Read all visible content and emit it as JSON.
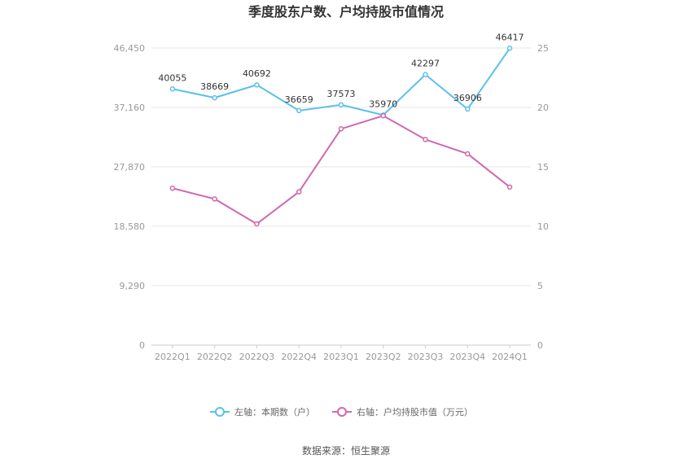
{
  "chart_data": {
    "type": "line",
    "title": "季度股东户数、户均持股市值情况",
    "categories": [
      "2022Q1",
      "2022Q2",
      "2022Q3",
      "2022Q4",
      "2023Q1",
      "2023Q2",
      "2023Q3",
      "2023Q4",
      "2024Q1"
    ],
    "left_axis": {
      "ticks": [
        "0",
        "9,290",
        "18,580",
        "27,870",
        "37,160",
        "46,450"
      ],
      "min": 0,
      "max": 46450
    },
    "right_axis": {
      "ticks": [
        "0",
        "5",
        "10",
        "15",
        "20",
        "25"
      ],
      "min": 0,
      "max": 25
    },
    "series": [
      {
        "name": "左轴：本期数（户）",
        "axis": "left",
        "color": "#5bc0eb",
        "values": [
          40055,
          38669,
          40692,
          36659,
          37573,
          35970,
          42297,
          36906,
          46417
        ],
        "labels": [
          "40055",
          "38669",
          "40692",
          "36659",
          "37573",
          "35970",
          "42297",
          "36906",
          "46417"
        ]
      },
      {
        "name": "右轴：户均持股市值（万元）",
        "axis": "right",
        "color": "#d068b0",
        "values": [
          13.2,
          12.3,
          10.2,
          12.9,
          18.2,
          19.3,
          17.3,
          16.1,
          13.3
        ]
      }
    ],
    "grid": true,
    "legend_position": "bottom-center"
  },
  "source_text": "数据来源：恒生聚源"
}
